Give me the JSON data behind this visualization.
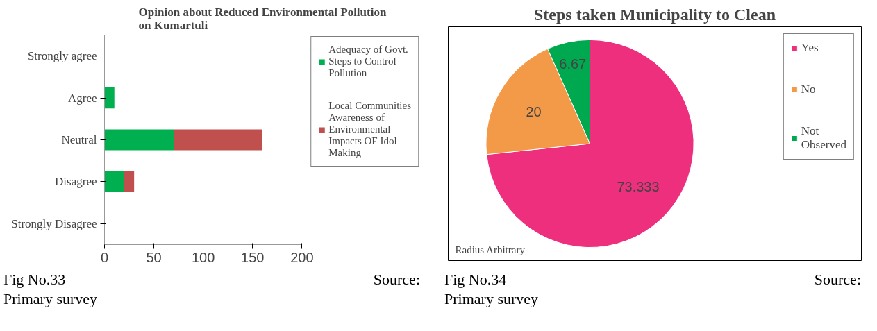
{
  "chart_data": [
    {
      "type": "bar",
      "orientation": "horizontal",
      "stacked": true,
      "title": "Opinion about Reduced Environmental Pollution on Kumartuli",
      "categories": [
        "Strongly agree",
        "Agree",
        "Neutral",
        "Disagree",
        "Strongly Disagree"
      ],
      "series": [
        {
          "name": "Adequacy of Govt. Steps to Control Pollution",
          "color": "#00b050",
          "values": [
            0,
            10,
            70,
            20,
            0
          ]
        },
        {
          "name": "Local Communities Awareness of Environmental Impacts OF Idol Making",
          "color": "#c0504d",
          "values": [
            0,
            0,
            90,
            10,
            0
          ]
        }
      ],
      "xlim": [
        0,
        200
      ],
      "xticks": [
        0,
        50,
        100,
        150,
        200
      ],
      "grid": false,
      "legend": "right",
      "annotations": [
        "Fig No.33",
        "Source:",
        "Primary survey"
      ]
    },
    {
      "type": "pie",
      "title": "Steps taken Municipality to Clean",
      "categories": [
        "Yes",
        "No",
        "Not Observed"
      ],
      "values": [
        73.333,
        20,
        6.67
      ],
      "colors": [
        "#ee2f7d",
        "#f39a48",
        "#00a94f"
      ],
      "data_labels": true,
      "legend": "right",
      "annotations": [
        "Radius Arbitrary",
        "Fig No.34",
        "Source:",
        "Primary survey"
      ]
    }
  ]
}
